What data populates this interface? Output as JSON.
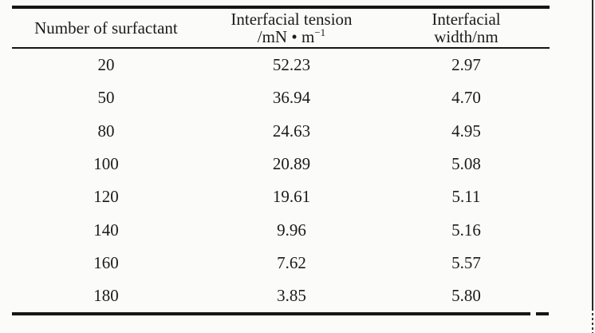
{
  "table": {
    "columns": [
      {
        "line1": "Number of surfactant",
        "line2": ""
      },
      {
        "line1": "Interfacial tension",
        "unit_prefix": "/mN • m",
        "unit_exponent": "−1"
      },
      {
        "line1": "Interfacial",
        "line2": "width/nm"
      }
    ],
    "rows": [
      {
        "n": "20",
        "tension": "52.23",
        "width": "2.97"
      },
      {
        "n": "50",
        "tension": "36.94",
        "width": "4.70"
      },
      {
        "n": "80",
        "tension": "24.63",
        "width": "4.95"
      },
      {
        "n": "100",
        "tension": "20.89",
        "width": "5.08"
      },
      {
        "n": "120",
        "tension": "19.61",
        "width": "5.11"
      },
      {
        "n": "140",
        "tension": "9.96",
        "width": "5.16"
      },
      {
        "n": "160",
        "tension": "7.62",
        "width": "5.57"
      },
      {
        "n": "180",
        "tension": "3.85",
        "width": "5.80"
      }
    ]
  },
  "chart_data": {
    "type": "table",
    "title": "",
    "columns": [
      "Number of surfactant",
      "Interfacial tension /mN·m⁻¹",
      "Interfacial width/nm"
    ],
    "rows": [
      [
        20,
        52.23,
        2.97
      ],
      [
        50,
        36.94,
        4.7
      ],
      [
        80,
        24.63,
        4.95
      ],
      [
        100,
        20.89,
        5.08
      ],
      [
        120,
        19.61,
        5.11
      ],
      [
        140,
        9.96,
        5.16
      ],
      [
        160,
        7.62,
        5.57
      ],
      [
        180,
        3.85,
        5.8
      ]
    ]
  },
  "colors": {
    "line": "#161616",
    "text": "#1b1b1b",
    "background": "#fbfbfa"
  }
}
